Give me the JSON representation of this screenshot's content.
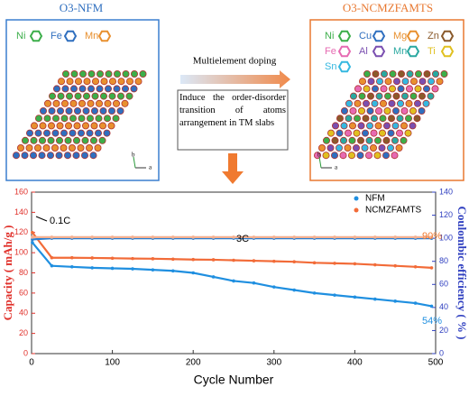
{
  "figure": {
    "left_title": "O3-NFM",
    "left_elements": [
      "Ni",
      "Fe",
      "Mn"
    ],
    "right_title": "O3-NCMZFAMTS",
    "right_elements": [
      "Ni",
      "Cu",
      "Mg",
      "Zn",
      "Fe",
      "Al",
      "Mn",
      "Ti",
      "Sn"
    ],
    "arrow_label": "Multielement doping",
    "note": "Induce the order-disorder transition of atoms arrangement in TM slabs",
    "lattice_axes": [
      "b",
      "a"
    ]
  },
  "chart_data": {
    "type": "line",
    "xlabel": "Cycle Number",
    "ylabel": "Capacity ( mAh/g )",
    "y2label": "Coulombic efficiency ( % )",
    "x": [
      1,
      25,
      50,
      75,
      100,
      125,
      150,
      175,
      200,
      225,
      250,
      275,
      300,
      325,
      350,
      375,
      400,
      425,
      450,
      475,
      495
    ],
    "series": [
      {
        "name": "NFM",
        "color": "#1f8fe0",
        "values": [
          110,
          87,
          86,
          85,
          84.5,
          84,
          83,
          82,
          80,
          76,
          72,
          70,
          66,
          63,
          60,
          58,
          56,
          54,
          52,
          50,
          47
        ]
      },
      {
        "name": "NCMZFAMTS",
        "color": "#f26b38",
        "values": [
          120,
          95,
          95,
          94.8,
          94.5,
          94.2,
          94,
          93.6,
          93.2,
          93,
          92.5,
          92,
          91.5,
          91,
          90,
          89.5,
          89,
          88,
          87,
          86,
          85
        ]
      },
      {
        "color": "#2a7fd0",
        "axis": "y2",
        "values": [
          99,
          100,
          100,
          100,
          100,
          100,
          100,
          100,
          100,
          100,
          100,
          100,
          100,
          100,
          100,
          100,
          100,
          100,
          100,
          100,
          100
        ]
      },
      {
        "color": "#f4b090",
        "axis": "y2",
        "values": [
          101,
          101,
          101,
          101,
          101,
          101,
          101,
          101,
          101,
          101,
          101,
          101,
          101,
          101,
          101,
          101,
          101,
          101,
          101,
          101,
          101
        ]
      }
    ],
    "annotations": [
      "0.1C",
      "3C",
      "90%",
      "54%"
    ],
    "xlim": [
      0,
      500
    ],
    "xticks": [
      0,
      100,
      200,
      300,
      400,
      500
    ],
    "ylim": [
      0,
      160
    ],
    "yticks": [
      0,
      20,
      40,
      60,
      80,
      100,
      120,
      140,
      160
    ],
    "y2lim": [
      0,
      140
    ],
    "y2ticks": [
      0,
      20,
      40,
      60,
      80,
      100,
      120,
      140
    ],
    "legend": "upper right"
  }
}
